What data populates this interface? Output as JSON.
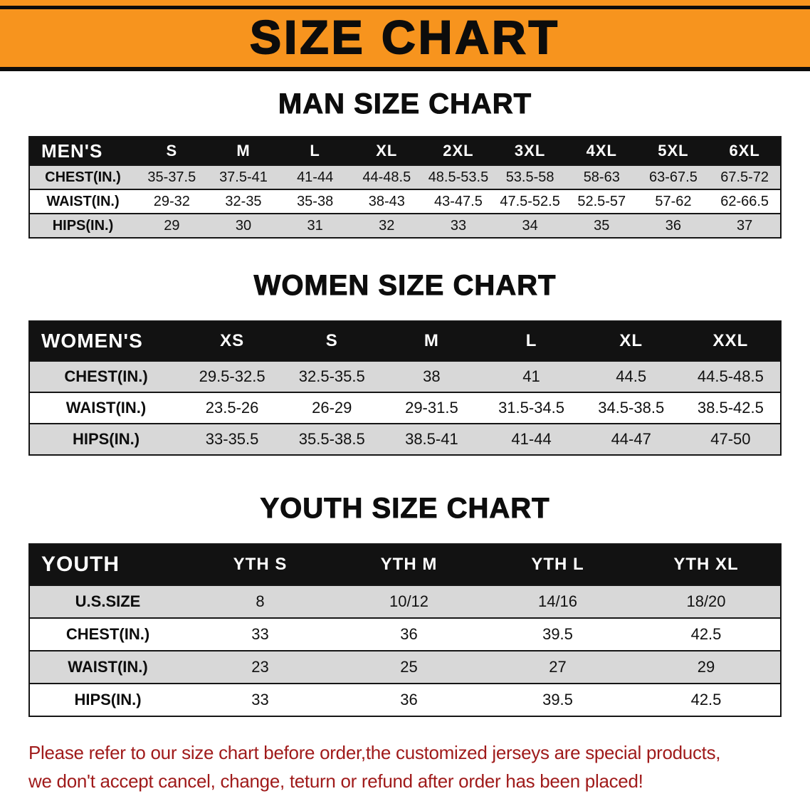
{
  "banner": {
    "title": "SIZE CHART",
    "bg_color": "#F7941E",
    "line_color": "#0C0C0C"
  },
  "sections": [
    {
      "heading": "MAN SIZE CHART",
      "table": {
        "header": [
          "MEN'S",
          "S",
          "M",
          "L",
          "XL",
          "2XL",
          "3XL",
          "4XL",
          "5XL",
          "6XL"
        ],
        "rows": [
          [
            "CHEST(IN.)",
            "35-37.5",
            "37.5-41",
            "41-44",
            "44-48.5",
            "48.5-53.5",
            "53.5-58",
            "58-63",
            "63-67.5",
            "67.5-72"
          ],
          [
            "WAIST(IN.)",
            "29-32",
            "32-35",
            "35-38",
            "38-43",
            "43-47.5",
            "47.5-52.5",
            "52.5-57",
            "57-62",
            "62-66.5"
          ],
          [
            "HIPS(IN.)",
            "29",
            "30",
            "31",
            "32",
            "33",
            "34",
            "35",
            "36",
            "37"
          ]
        ]
      }
    },
    {
      "heading": "WOMEN SIZE CHART",
      "table": {
        "header": [
          "WOMEN'S",
          "XS",
          "S",
          "M",
          "L",
          "XL",
          "XXL"
        ],
        "rows": [
          [
            "CHEST(IN.)",
            "29.5-32.5",
            "32.5-35.5",
            "38",
            "41",
            "44.5",
            "44.5-48.5"
          ],
          [
            "WAIST(IN.)",
            "23.5-26",
            "26-29",
            "29-31.5",
            "31.5-34.5",
            "34.5-38.5",
            "38.5-42.5"
          ],
          [
            "HIPS(IN.)",
            "33-35.5",
            "35.5-38.5",
            "38.5-41",
            "41-44",
            "44-47",
            "47-50"
          ]
        ]
      }
    },
    {
      "heading": "YOUTH SIZE CHART",
      "table": {
        "header": [
          "YOUTH",
          "YTH S",
          "YTH M",
          "YTH L",
          "YTH XL"
        ],
        "rows": [
          [
            "U.S.SIZE",
            "8",
            "10/12",
            "14/16",
            "18/20"
          ],
          [
            "CHEST(IN.)",
            "33",
            "36",
            "39.5",
            "42.5"
          ],
          [
            "WAIST(IN.)",
            "23",
            "25",
            "27",
            "29"
          ],
          [
            "HIPS(IN.)",
            "33",
            "36",
            "39.5",
            "42.5"
          ]
        ]
      }
    }
  ],
  "footer": {
    "line1": "Please refer to our size chart before order,the customized jerseys are special products,",
    "line2": "we don't accept cancel, change, teturn or refund after order has been placed!",
    "text_color": "#A01B1B"
  }
}
